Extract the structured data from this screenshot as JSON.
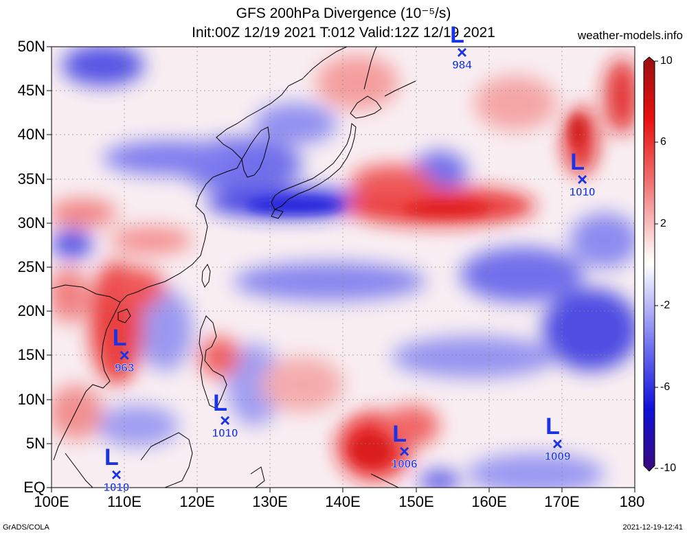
{
  "title": {
    "line1": "GFS 200hPa Divergence (10⁻⁵/s)",
    "line2": "Init:00Z 12/19 2021 T:012 Valid:12Z 12/19 2021"
  },
  "site": "weather-models.info",
  "credit": "GrADS/COLA",
  "timestamp": "2021-12-19-12:41",
  "lat_labels": [
    "50N",
    "45N",
    "40N",
    "35N",
    "30N",
    "25N",
    "20N",
    "15N",
    "10N",
    "5N",
    "EQ"
  ],
  "lon_labels": [
    "100E",
    "110E",
    "120E",
    "130E",
    "140E",
    "150E",
    "160E",
    "170E",
    "180"
  ],
  "colorbar": {
    "labels": [
      "10",
      "6",
      "2",
      "-2",
      "-6",
      "-10"
    ],
    "range": [
      -10,
      10
    ]
  },
  "colors": {
    "positive": "#e81010",
    "negative": "#1010d8",
    "label": "#1a33e8"
  },
  "pressure_systems": [
    {
      "type": "L",
      "pressure": "984",
      "lon": 156.3,
      "lat": 49.2
    },
    {
      "type": "L",
      "pressure": "1010",
      "lon": 172.8,
      "lat": 34.8
    },
    {
      "type": "L",
      "pressure": "963",
      "lon": 110.0,
      "lat": 14.9
    },
    {
      "type": "L",
      "pressure": "1010",
      "lon": 123.8,
      "lat": 7.5
    },
    {
      "type": "L",
      "pressure": "1006",
      "lon": 148.4,
      "lat": 4.0
    },
    {
      "type": "L",
      "pressure": "1009",
      "lon": 169.4,
      "lat": 4.8
    },
    {
      "type": "L",
      "pressure": "1010",
      "lon": 108.9,
      "lat": 1.3
    }
  ]
}
